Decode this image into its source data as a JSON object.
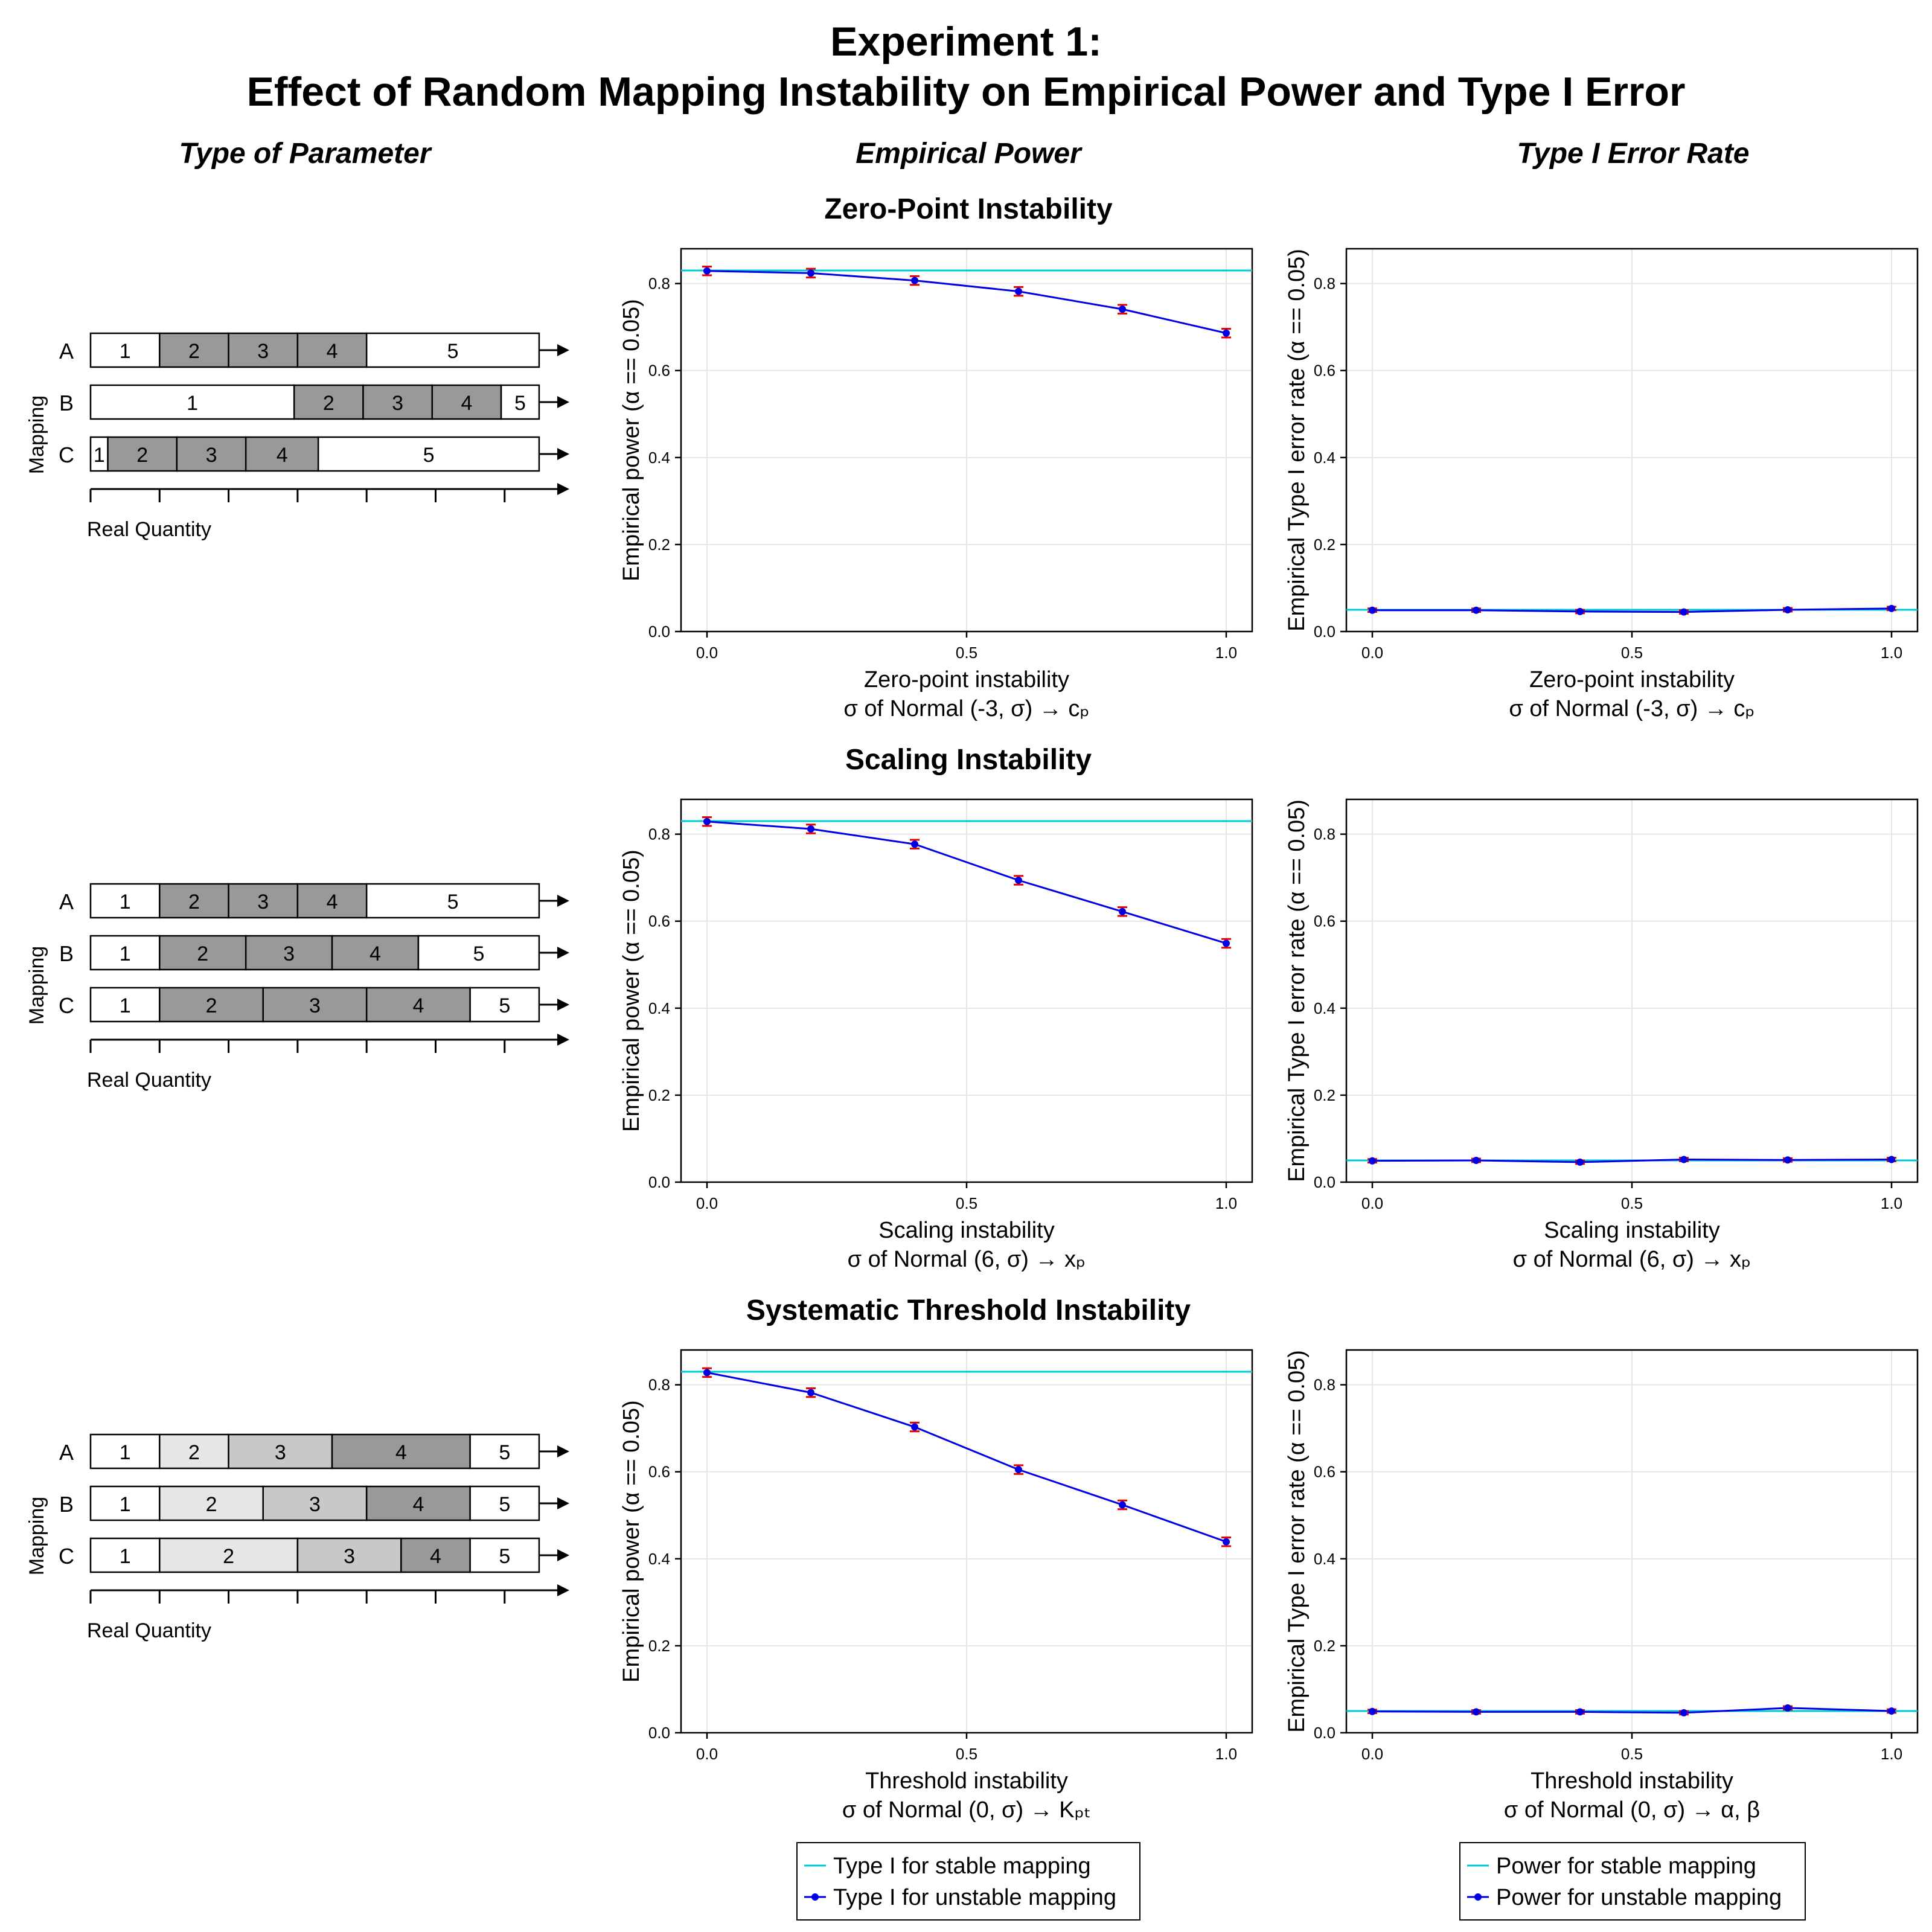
{
  "title_line1": "Experiment 1:",
  "title_line2": "Effect of Random Mapping Instability on Empirical Power and Type I Error",
  "column_headers": [
    "Type of Parameter",
    "Empirical Power",
    "Type I Error Rate"
  ],
  "rows": [
    {
      "title": "Zero-Point Instability",
      "diagram": {
        "ylabel": "Mapping",
        "axis_label": "Real Quantity",
        "mappings": [
          {
            "label": "A",
            "segments": [
              {
                "label": "1",
                "start": 0,
                "end": 1,
                "shade": "white"
              },
              {
                "label": "2",
                "start": 1,
                "end": 2,
                "shade": "dark"
              },
              {
                "label": "3",
                "start": 2,
                "end": 3,
                "shade": "dark"
              },
              {
                "label": "4",
                "start": 3,
                "end": 4,
                "shade": "dark"
              },
              {
                "label": "5",
                "start": 4,
                "end": 6.5,
                "shade": "white"
              }
            ]
          },
          {
            "label": "B",
            "segments": [
              {
                "label": "1",
                "start": 0,
                "end": 2.95,
                "shade": "white"
              },
              {
                "label": "2",
                "start": 2.95,
                "end": 3.95,
                "shade": "dark"
              },
              {
                "label": "3",
                "start": 3.95,
                "end": 4.95,
                "shade": "dark"
              },
              {
                "label": "4",
                "start": 4.95,
                "end": 5.95,
                "shade": "dark"
              },
              {
                "label": "5",
                "start": 5.95,
                "end": 6.5,
                "shade": "white"
              }
            ]
          },
          {
            "label": "C",
            "segments": [
              {
                "label": "1",
                "start": 0,
                "end": 0.25,
                "shade": "white"
              },
              {
                "label": "2",
                "start": 0.25,
                "end": 1.25,
                "shade": "dark"
              },
              {
                "label": "3",
                "start": 1.25,
                "end": 2.25,
                "shade": "dark"
              },
              {
                "label": "4",
                "start": 2.25,
                "end": 3.3,
                "shade": "dark"
              },
              {
                "label": "5",
                "start": 3.3,
                "end": 6.5,
                "shade": "white"
              }
            ]
          }
        ]
      },
      "power_xlabel": [
        "Zero-point instability",
        "σ of Normal (-3, σ) → cₚ"
      ],
      "error_xlabel": [
        "Zero-point instability",
        "σ of Normal (-3, σ) → cₚ"
      ]
    },
    {
      "title": "Scaling Instability",
      "diagram": {
        "ylabel": "Mapping",
        "axis_label": "Real Quantity",
        "mappings": [
          {
            "label": "A",
            "segments": [
              {
                "label": "1",
                "start": 0,
                "end": 1,
                "shade": "white"
              },
              {
                "label": "2",
                "start": 1,
                "end": 2,
                "shade": "dark"
              },
              {
                "label": "3",
                "start": 2,
                "end": 3,
                "shade": "dark"
              },
              {
                "label": "4",
                "start": 3,
                "end": 4,
                "shade": "dark"
              },
              {
                "label": "5",
                "start": 4,
                "end": 6.5,
                "shade": "white"
              }
            ]
          },
          {
            "label": "B",
            "segments": [
              {
                "label": "1",
                "start": 0,
                "end": 1,
                "shade": "white"
              },
              {
                "label": "2",
                "start": 1,
                "end": 2.25,
                "shade": "dark"
              },
              {
                "label": "3",
                "start": 2.25,
                "end": 3.5,
                "shade": "dark"
              },
              {
                "label": "4",
                "start": 3.5,
                "end": 4.75,
                "shade": "dark"
              },
              {
                "label": "5",
                "start": 4.75,
                "end": 6.5,
                "shade": "white"
              }
            ]
          },
          {
            "label": "C",
            "segments": [
              {
                "label": "1",
                "start": 0,
                "end": 1,
                "shade": "white"
              },
              {
                "label": "2",
                "start": 1,
                "end": 2.5,
                "shade": "dark"
              },
              {
                "label": "3",
                "start": 2.5,
                "end": 4,
                "shade": "dark"
              },
              {
                "label": "4",
                "start": 4,
                "end": 5.5,
                "shade": "dark"
              },
              {
                "label": "5",
                "start": 5.5,
                "end": 6.5,
                "shade": "white"
              }
            ]
          }
        ]
      },
      "power_xlabel": [
        "Scaling instability",
        "σ of Normal (6, σ) → xₚ"
      ],
      "error_xlabel": [
        "Scaling instability",
        "σ of Normal (6, σ) → xₚ"
      ]
    },
    {
      "title": "Systematic Threshold Instability",
      "diagram": {
        "ylabel": "Mapping",
        "axis_label": "Real Quantity",
        "mappings": [
          {
            "label": "A",
            "segments": [
              {
                "label": "1",
                "start": 0,
                "end": 1,
                "shade": "white"
              },
              {
                "label": "2",
                "start": 1,
                "end": 2,
                "shade": "light"
              },
              {
                "label": "3",
                "start": 2,
                "end": 3.5,
                "shade": "medium"
              },
              {
                "label": "4",
                "start": 3.5,
                "end": 5.5,
                "shade": "dark"
              },
              {
                "label": "5",
                "start": 5.5,
                "end": 6.5,
                "shade": "white"
              }
            ]
          },
          {
            "label": "B",
            "segments": [
              {
                "label": "1",
                "start": 0,
                "end": 1,
                "shade": "white"
              },
              {
                "label": "2",
                "start": 1,
                "end": 2.5,
                "shade": "light"
              },
              {
                "label": "3",
                "start": 2.5,
                "end": 4,
                "shade": "medium"
              },
              {
                "label": "4",
                "start": 4,
                "end": 5.5,
                "shade": "dark"
              },
              {
                "label": "5",
                "start": 5.5,
                "end": 6.5,
                "shade": "white"
              }
            ]
          },
          {
            "label": "C",
            "segments": [
              {
                "label": "1",
                "start": 0,
                "end": 1,
                "shade": "white"
              },
              {
                "label": "2",
                "start": 1,
                "end": 3,
                "shade": "light"
              },
              {
                "label": "3",
                "start": 3,
                "end": 4.5,
                "shade": "medium"
              },
              {
                "label": "4",
                "start": 4.5,
                "end": 5.5,
                "shade": "dark"
              },
              {
                "label": "5",
                "start": 5.5,
                "end": 6.5,
                "shade": "white"
              }
            ]
          }
        ]
      },
      "power_xlabel": [
        "Threshold instability",
        "σ of Normal (0, σ) → Kₚₜ"
      ],
      "error_xlabel": [
        "Threshold instability",
        "σ of Normal (0, σ) → α, β"
      ]
    }
  ],
  "colors": {
    "stable": "#00c8d2",
    "unstable": "#0000e6",
    "errorbar": "#e60000",
    "dark": "#999999",
    "medium": "#c8c8c8",
    "light": "#e6e6e6"
  },
  "legends": [
    {
      "entries": [
        "Type I for stable mapping",
        "Type I for unstable mapping"
      ]
    },
    {
      "entries": [
        "Power for stable mapping",
        "Power for unstable mapping"
      ]
    }
  ],
  "chart_data": [
    {
      "type": "line",
      "panel": "Zero-Point Instability – Empirical Power",
      "xlabel": "Zero-point instability σ of Normal (-3, σ) → cₚ",
      "ylabel": "Empirical power (α == 0.05)",
      "xlim": [
        -0.05,
        1.05
      ],
      "ylim": [
        0,
        0.88
      ],
      "xticks": [
        0.0,
        0.5,
        1.0
      ],
      "yticks": [
        0.0,
        0.2,
        0.4,
        0.6,
        0.8
      ],
      "grid": true,
      "stable_value": 0.83,
      "x": [
        0.0,
        0.2,
        0.4,
        0.6,
        0.8,
        1.0
      ],
      "y": [
        0.829,
        0.824,
        0.807,
        0.782,
        0.741,
        0.686
      ],
      "err": [
        0.01,
        0.01,
        0.01,
        0.01,
        0.01,
        0.01
      ]
    },
    {
      "type": "line",
      "panel": "Zero-Point Instability – Type I Error Rate",
      "xlabel": "Zero-point instability σ of Normal (-3, σ) → cₚ",
      "ylabel": "Empirical Type I error rate (α == 0.05)",
      "xlim": [
        -0.05,
        1.05
      ],
      "ylim": [
        0,
        0.88
      ],
      "xticks": [
        0.0,
        0.5,
        1.0
      ],
      "yticks": [
        0.0,
        0.2,
        0.4,
        0.6,
        0.8
      ],
      "grid": true,
      "stable_value": 0.05,
      "x": [
        0.0,
        0.2,
        0.4,
        0.6,
        0.8,
        1.0
      ],
      "y": [
        0.049,
        0.049,
        0.046,
        0.045,
        0.05,
        0.053
      ],
      "err": [
        0.004,
        0.004,
        0.004,
        0.004,
        0.004,
        0.004
      ]
    },
    {
      "type": "line",
      "panel": "Scaling Instability – Empirical Power",
      "xlabel": "Scaling instability σ of Normal (6, σ) → xₚ",
      "ylabel": "Empirical power (α == 0.05)",
      "xlim": [
        -0.05,
        1.05
      ],
      "ylim": [
        0,
        0.88
      ],
      "xticks": [
        0.0,
        0.5,
        1.0
      ],
      "yticks": [
        0.0,
        0.2,
        0.4,
        0.6,
        0.8
      ],
      "grid": true,
      "stable_value": 0.83,
      "x": [
        0.0,
        0.2,
        0.4,
        0.6,
        0.8,
        1.0
      ],
      "y": [
        0.829,
        0.812,
        0.777,
        0.694,
        0.622,
        0.549
      ],
      "err": [
        0.01,
        0.01,
        0.01,
        0.01,
        0.01,
        0.01
      ]
    },
    {
      "type": "line",
      "panel": "Scaling Instability – Type I Error Rate",
      "xlabel": "Scaling instability σ of Normal (6, σ) → xₚ",
      "ylabel": "Empirical Type I error rate (α == 0.05)",
      "xlim": [
        -0.05,
        1.05
      ],
      "ylim": [
        0,
        0.88
      ],
      "xticks": [
        0.0,
        0.5,
        1.0
      ],
      "yticks": [
        0.0,
        0.2,
        0.4,
        0.6,
        0.8
      ],
      "grid": true,
      "stable_value": 0.05,
      "x": [
        0.0,
        0.2,
        0.4,
        0.6,
        0.8,
        1.0
      ],
      "y": [
        0.049,
        0.05,
        0.046,
        0.052,
        0.051,
        0.052
      ],
      "err": [
        0.004,
        0.004,
        0.004,
        0.004,
        0.004,
        0.004
      ]
    },
    {
      "type": "line",
      "panel": "Systematic Threshold Instability – Empirical Power",
      "xlabel": "Threshold instability σ of Normal (0, σ) → Kₚₜ",
      "ylabel": "Empirical power (α == 0.05)",
      "xlim": [
        -0.05,
        1.05
      ],
      "ylim": [
        0,
        0.88
      ],
      "xticks": [
        0.0,
        0.5,
        1.0
      ],
      "yticks": [
        0.0,
        0.2,
        0.4,
        0.6,
        0.8
      ],
      "grid": true,
      "stable_value": 0.83,
      "x": [
        0.0,
        0.2,
        0.4,
        0.6,
        0.8,
        1.0
      ],
      "y": [
        0.828,
        0.782,
        0.703,
        0.605,
        0.524,
        0.439
      ],
      "err": [
        0.01,
        0.01,
        0.01,
        0.01,
        0.01,
        0.01
      ]
    },
    {
      "type": "line",
      "panel": "Systematic Threshold Instability – Type I Error Rate",
      "xlabel": "Threshold instability σ of Normal (0, σ) → α, β",
      "ylabel": "Empirical Type I error rate (α == 0.05)",
      "xlim": [
        -0.05,
        1.05
      ],
      "ylim": [
        0,
        0.88
      ],
      "xticks": [
        0.0,
        0.5,
        1.0
      ],
      "yticks": [
        0.0,
        0.2,
        0.4,
        0.6,
        0.8
      ],
      "grid": true,
      "stable_value": 0.05,
      "x": [
        0.0,
        0.2,
        0.4,
        0.6,
        0.8,
        1.0
      ],
      "y": [
        0.049,
        0.048,
        0.048,
        0.046,
        0.057,
        0.05
      ],
      "err": [
        0.004,
        0.004,
        0.004,
        0.004,
        0.004,
        0.004
      ]
    }
  ]
}
